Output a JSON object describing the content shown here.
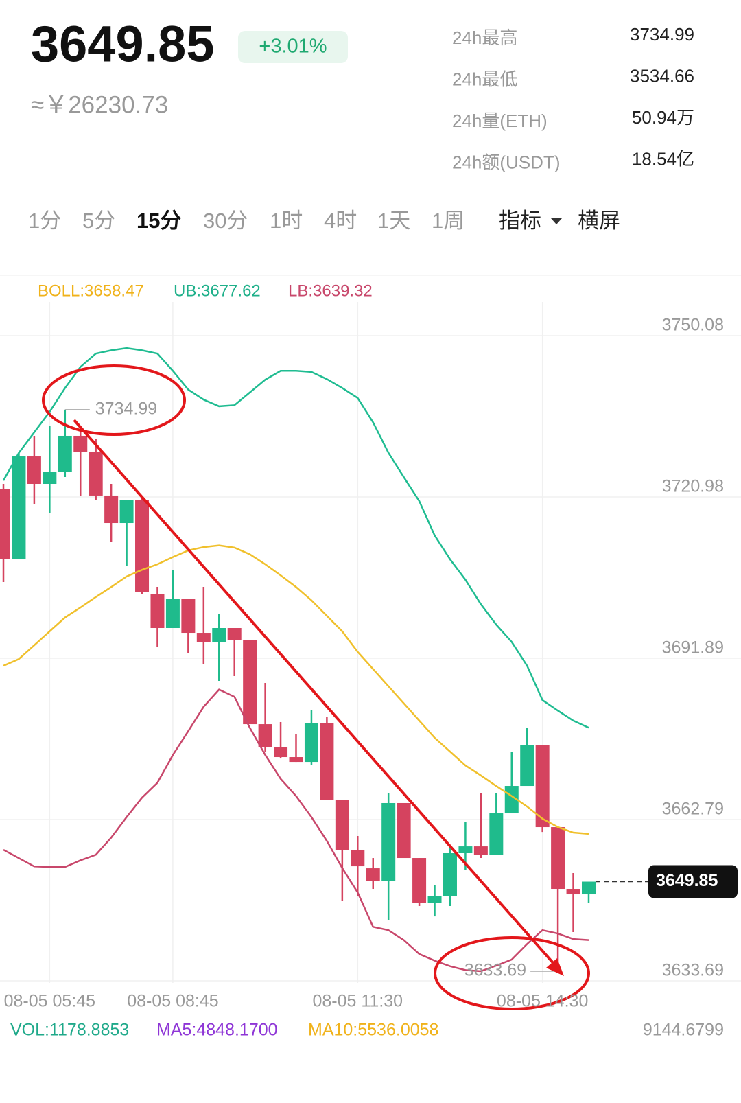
{
  "header": {
    "price": "3649.85",
    "change": "+3.01%",
    "cny": "≈￥26230.73"
  },
  "stats": [
    {
      "label": "24h最高",
      "value": "3734.99"
    },
    {
      "label": "24h最低",
      "value": "3534.66"
    },
    {
      "label": "24h量(ETH)",
      "value": "50.94万"
    },
    {
      "label": "24h额(USDT)",
      "value": "18.54亿"
    }
  ],
  "tabs": [
    "1分",
    "5分",
    "15分",
    "30分",
    "1时",
    "4时",
    "1天",
    "1周"
  ],
  "active_tab": 2,
  "tools": [
    "指标",
    "横屏"
  ],
  "chart_data": {
    "type": "candlestick",
    "categories": [
      null,
      null,
      null,
      "08-05 05:45",
      null,
      null,
      null,
      null,
      null,
      null,
      null,
      "08-05 08:45",
      null,
      null,
      null,
      null,
      null,
      null,
      null,
      null,
      null,
      null,
      null,
      "08-05 11:30",
      null,
      null,
      null,
      null,
      null,
      null,
      null,
      null,
      null,
      null,
      null,
      "08-05 14:30",
      null,
      null,
      null
    ],
    "open": [
      3720.73,
      3707.98,
      3726.55,
      3721.6,
      3723.71,
      3730.27,
      3727.42,
      3719.5,
      3714.54,
      3718.75,
      3701.79,
      3695.6,
      3700.8,
      3694.73,
      3693.12,
      3695.6,
      3693.49,
      3678.26,
      3674.18,
      3672.32,
      3671.45,
      3678.51,
      3664.64,
      3655.61,
      3652.26,
      3650.03,
      3664.03,
      3654.12,
      3646.07,
      3647.31,
      3654.99,
      3656.22,
      3654.74,
      3662.17,
      3667.12,
      3674.55,
      3659.69,
      3648.55,
      3647.56
    ],
    "high": [
      3721.6,
      3727.17,
      3730.27,
      3732.13,
      3734.99,
      3732.13,
      3729.65,
      3721.6,
      3718.75,
      3719.12,
      3703.03,
      3706.12,
      3700.8,
      3703.03,
      3698.08,
      3695.6,
      3693.49,
      3685.69,
      3678.64,
      3676.41,
      3680.74,
      3679.5,
      3664.64,
      3658.08,
      3654.12,
      3665.88,
      3664.03,
      3654.12,
      3649.17,
      3655.98,
      3660.56,
      3665.88,
      3665.88,
      3673.31,
      3677.65,
      3674.55,
      3659.69,
      3651.4,
      3649.79
    ],
    "low": [
      3703.9,
      3707.98,
      3717.89,
      3716.28,
      3722.84,
      3719.5,
      3718.75,
      3711.08,
      3706.74,
      3701.79,
      3692.26,
      3695.6,
      3691.02,
      3689.04,
      3686.07,
      3686.93,
      3678.26,
      3673.31,
      3672.07,
      3671.45,
      3670.84,
      3664.64,
      3646.44,
      3647.31,
      3648.55,
      3642.98,
      3654.12,
      3645.45,
      3643.59,
      3645.45,
      3651.89,
      3654.12,
      3654.74,
      3662.17,
      3667.12,
      3658.82,
      3633.69,
      3640.75,
      3646.07
    ],
    "close": [
      3707.98,
      3726.55,
      3721.6,
      3723.71,
      3730.27,
      3727.42,
      3719.5,
      3714.54,
      3718.75,
      3702.04,
      3695.6,
      3700.8,
      3694.73,
      3693.12,
      3695.6,
      3693.49,
      3678.26,
      3674.18,
      3672.32,
      3671.45,
      3678.51,
      3664.64,
      3655.61,
      3652.63,
      3650.03,
      3664.03,
      3654.12,
      3646.07,
      3647.31,
      3654.99,
      3656.22,
      3654.74,
      3662.17,
      3667.12,
      3674.55,
      3659.69,
      3648.55,
      3647.56,
      3649.85
    ],
    "up_color": "#1fbb8c",
    "down_color": "#d5435f",
    "series": [
      {
        "name": "BOLL:3658.47",
        "color": "#f0c02c",
        "values": [
          3688.8,
          3690.0,
          3692.5,
          3695.0,
          3697.5,
          3699.3,
          3701.2,
          3703.0,
          3704.9,
          3706.1,
          3707.1,
          3708.4,
          3709.6,
          3710.2,
          3710.5,
          3710.1,
          3708.9,
          3707.1,
          3705.1,
          3703.0,
          3700.6,
          3697.8,
          3695.0,
          3691.3,
          3688.2,
          3685.1,
          3682.0,
          3678.9,
          3675.8,
          3673.3,
          3670.8,
          3669.0,
          3667.1,
          3665.3,
          3663.4,
          3661.2,
          3659.7,
          3658.7,
          3658.47
        ]
      },
      {
        "name": "UB:3677.62",
        "color": "#1fbc91",
        "values": [
          3722.2,
          3727.2,
          3730.9,
          3734.6,
          3738.9,
          3742.7,
          3745.1,
          3745.7,
          3746.1,
          3745.7,
          3745.1,
          3742.0,
          3738.6,
          3736.8,
          3735.6,
          3735.8,
          3738.1,
          3740.4,
          3742.0,
          3742.0,
          3741.8,
          3740.5,
          3738.9,
          3737.1,
          3732.7,
          3727.2,
          3722.8,
          3718.5,
          3712.3,
          3708.0,
          3704.3,
          3699.9,
          3696.2,
          3693.1,
          3688.8,
          3682.6,
          3680.7,
          3678.9,
          3677.62
        ]
      },
      {
        "name": "LB:3639.32",
        "color": "#c8476b",
        "values": [
          3655.6,
          3654.1,
          3652.6,
          3652.5,
          3652.5,
          3653.7,
          3654.7,
          3657.8,
          3661.5,
          3665.0,
          3667.7,
          3672.7,
          3677.0,
          3681.4,
          3684.5,
          3683.2,
          3677.6,
          3672.7,
          3668.4,
          3665.3,
          3661.5,
          3657.2,
          3652.3,
          3647.9,
          3641.7,
          3641.1,
          3639.3,
          3636.8,
          3635.6,
          3634.6,
          3633.9,
          3633.7,
          3634.7,
          3635.8,
          3638.6,
          3641.1,
          3640.5,
          3639.5,
          3639.32
        ]
      }
    ],
    "ylim": [
      3631.59,
      3754.41
    ],
    "yticks": [
      3750.08,
      3720.98,
      3691.89,
      3662.79,
      3633.69
    ],
    "grid": true
  },
  "volume": {
    "vol": "VOL:1178.8853",
    "ma5": "MA5:4848.1700",
    "ma10": "MA10:5536.0058",
    "max": "9144.6799"
  }
}
